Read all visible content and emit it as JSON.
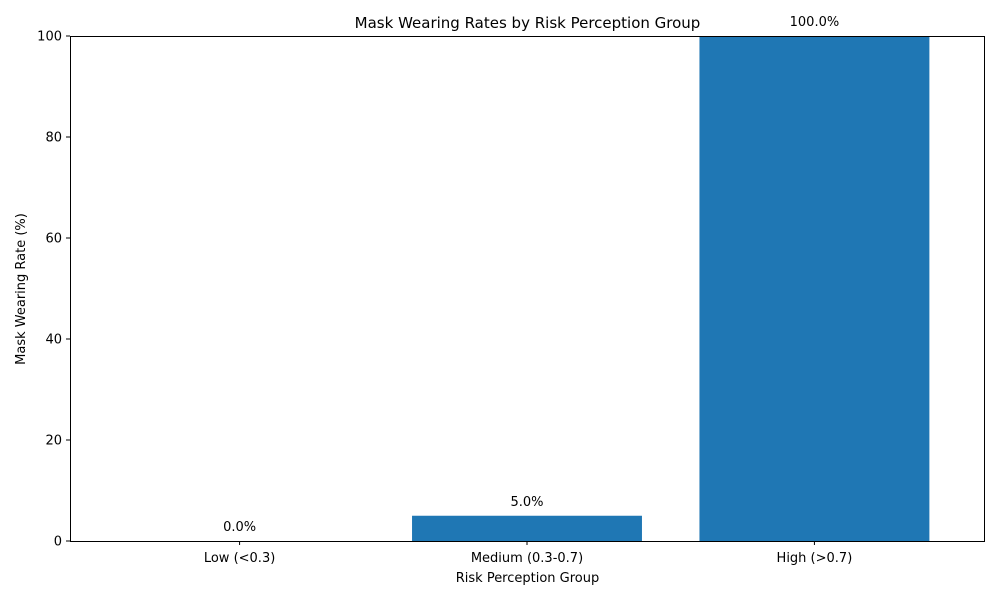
{
  "chart_data": {
    "type": "bar",
    "title": "Mask Wearing Rates by Risk Perception Group",
    "xlabel": "Risk Perception Group",
    "ylabel": "Mask Wearing Rate (%)",
    "categories": [
      "Low (<0.3)",
      "Medium (0.3-0.7)",
      "High (>0.7)"
    ],
    "values": [
      0.0,
      5.0,
      100.0
    ],
    "value_labels": [
      "0.0%",
      "5.0%",
      "100.0%"
    ],
    "ylim": [
      0,
      100
    ],
    "yticks": [
      0,
      20,
      40,
      60,
      80,
      100
    ],
    "grid": false,
    "legend": "none",
    "bar_color": "#1f77b4"
  }
}
